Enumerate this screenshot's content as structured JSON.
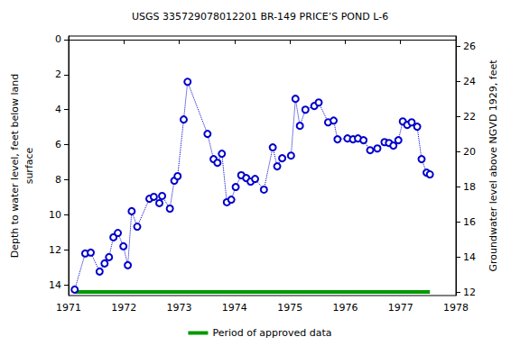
{
  "chart_data": {
    "type": "line",
    "title": "USGS 335729078012201 BR-149 PRICE’S POND L-6",
    "y_label": "Depth to water level, feet below land\nsurface",
    "y2_label": "Groundwater level above NGVD 1929, feet",
    "xlim": [
      1971,
      1978
    ],
    "xticks": [
      1971,
      1972,
      1973,
      1974,
      1975,
      1976,
      1977,
      1978
    ],
    "ylim": [
      -0.2,
      14.6
    ],
    "yticks": [
      0,
      2,
      4,
      6,
      8,
      10,
      12,
      14
    ],
    "y_inverted": true,
    "y2lim": [
      11.8,
      26.6
    ],
    "y2ticks": [
      12,
      14,
      16,
      18,
      20,
      22,
      24,
      26
    ],
    "grid": false,
    "legend": "bottom",
    "series": [
      {
        "color": "#0000cc",
        "marker": "circle",
        "line_style": "dotted",
        "x": [
          1971.11,
          1971.3,
          1971.4,
          1971.56,
          1971.65,
          1971.73,
          1971.81,
          1971.89,
          1971.99,
          1972.07,
          1972.14,
          1972.24,
          1972.46,
          1972.54,
          1972.64,
          1972.69,
          1972.83,
          1972.91,
          1972.97,
          1973.08,
          1973.15,
          1973.51,
          1973.62,
          1973.69,
          1973.77,
          1973.86,
          1973.94,
          1974.02,
          1974.12,
          1974.21,
          1974.29,
          1974.37,
          1974.53,
          1974.69,
          1974.77,
          1974.86,
          1975.02,
          1975.1,
          1975.18,
          1975.28,
          1975.44,
          1975.52,
          1975.69,
          1975.79,
          1975.86,
          1976.04,
          1976.14,
          1976.23,
          1976.33,
          1976.45,
          1976.58,
          1976.71,
          1976.79,
          1976.87,
          1976.96,
          1977.04,
          1977.12,
          1977.2,
          1977.3,
          1977.38,
          1977.47,
          1977.53
        ],
        "values": [
          14.26,
          12.2,
          12.15,
          13.23,
          12.77,
          12.41,
          11.28,
          11.03,
          11.79,
          12.87,
          9.79,
          10.67,
          9.08,
          8.97,
          9.33,
          8.92,
          9.64,
          8.05,
          7.79,
          4.56,
          2.41,
          5.38,
          6.82,
          7.03,
          6.51,
          9.28,
          9.13,
          8.41,
          7.74,
          7.9,
          8.1,
          7.95,
          8.56,
          6.15,
          7.23,
          6.77,
          6.62,
          3.38,
          4.92,
          4.0,
          3.79,
          3.59,
          4.72,
          4.62,
          5.69,
          5.64,
          5.69,
          5.64,
          5.74,
          6.31,
          6.21,
          5.85,
          5.9,
          6.05,
          5.74,
          4.67,
          4.87,
          4.72,
          4.97,
          6.82,
          7.59,
          7.69
        ]
      }
    ],
    "approved_period": {
      "name": "Period of approved data",
      "color": "#009900",
      "x": [
        1971.11,
        1977.53
      ],
      "depth": 14.4
    }
  }
}
